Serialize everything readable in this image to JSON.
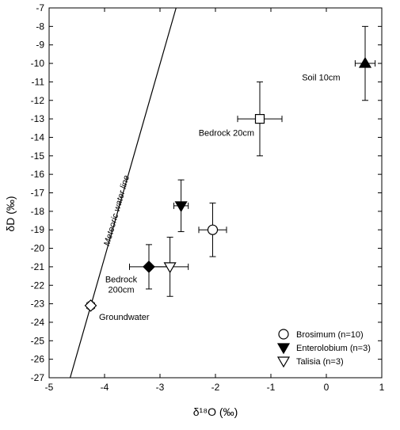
{
  "chart_data": {
    "type": "scatter",
    "xlabel": "δ¹⁸O (‰)",
    "ylabel": "δD (‰)",
    "xlim": [
      -5,
      1
    ],
    "ylim": [
      -27,
      -7
    ],
    "xticks": [
      "-5",
      "-4",
      "-3",
      "-2",
      "-1",
      "0",
      "1"
    ],
    "yticks": [
      "-7",
      "-8",
      "-9",
      "-10",
      "-11",
      "-12",
      "-13",
      "-14",
      "-15",
      "-16",
      "-17",
      "-18",
      "-19",
      "-20",
      "-21",
      "-22",
      "-23",
      "-24",
      "-25",
      "-26",
      "-27"
    ],
    "grid": false,
    "legend_position": "bottom-right",
    "series": [
      {
        "name": "Brosimum (n=10)",
        "marker": "open-circle",
        "points": [
          {
            "x": -2.05,
            "y": -19.0,
            "xerr": 0.25,
            "yerr": 1.45
          }
        ]
      },
      {
        "name": "Enterolobium (n=3)",
        "marker": "filled-triangle-down",
        "points": [
          {
            "x": -2.62,
            "y": -17.7,
            "xerr": 0.13,
            "yerr": 1.4
          }
        ]
      },
      {
        "name": "Talisia (n=3)",
        "marker": "open-triangle-down",
        "points": [
          {
            "x": -2.82,
            "y": -21.0,
            "xerr": 0.33,
            "yerr": 1.6
          }
        ]
      }
    ],
    "sources": [
      {
        "label": "Soil 10cm",
        "marker": "filled-triangle-up",
        "x": 0.7,
        "y": -10.0,
        "xerr": 0.18,
        "yerr": 2.0
      },
      {
        "label": "Bedrock 20cm",
        "marker": "open-square",
        "x": -1.2,
        "y": -13.0,
        "xerr": 0.4,
        "yerr": 2.0
      },
      {
        "label": "Bedrock 200cm",
        "marker": "filled-diamond",
        "x": -3.2,
        "y": -21.0,
        "xerr": 0.35,
        "yerr": 1.2
      },
      {
        "label": "Groundwater",
        "marker": "open-diamond",
        "x": -4.25,
        "y": -23.1,
        "xerr": 0.07,
        "yerr": 0.2
      }
    ],
    "line": {
      "label": "Meteoric water line",
      "x": [
        -4.62,
        -2.71
      ],
      "y": [
        -27,
        -7
      ]
    }
  }
}
